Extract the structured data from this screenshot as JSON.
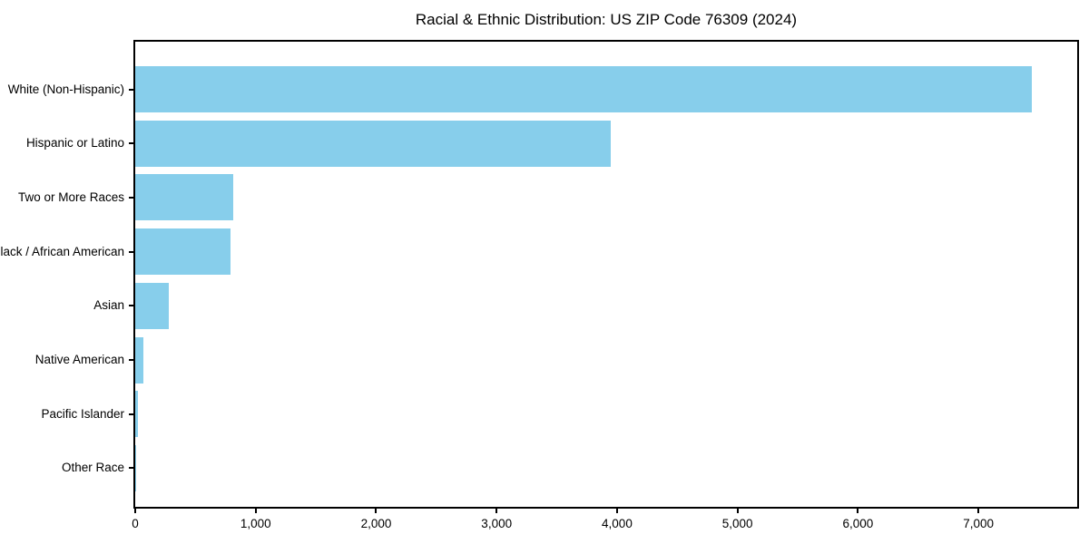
{
  "chart_data": {
    "type": "bar",
    "orientation": "horizontal",
    "title": "Racial & Ethnic Distribution: US ZIP Code 76309 (2024)",
    "xlabel": "",
    "ylabel": "",
    "categories": [
      "White (Non-Hispanic)",
      "Hispanic or Latino",
      "Two or More Races",
      "Black / African American",
      "Asian",
      "Native American",
      "Pacific Islander",
      "Other Race"
    ],
    "values": [
      7445,
      3950,
      815,
      790,
      275,
      65,
      20,
      5
    ],
    "xlim": [
      0,
      7820
    ],
    "x_ticks": [
      0,
      1000,
      2000,
      3000,
      4000,
      5000,
      6000,
      7000
    ],
    "x_tick_labels": [
      "0",
      "1,000",
      "2,000",
      "3,000",
      "4,000",
      "5,000",
      "6,000",
      "7,000"
    ],
    "bar_color": "#87CEEB",
    "grid": false,
    "legend": null,
    "background_color": "#ffffff",
    "spine_color": "#000000"
  }
}
